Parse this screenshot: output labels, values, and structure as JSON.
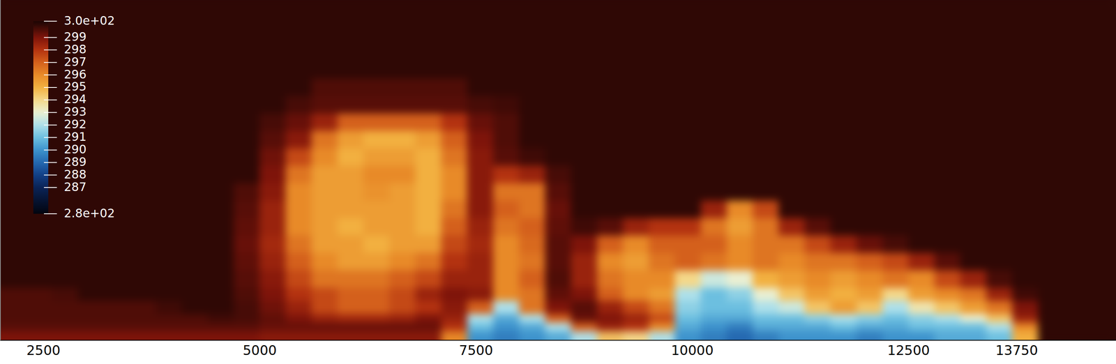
{
  "chart_data": {
    "type": "heatmap",
    "x_edges": [
      2000,
      2300,
      2600,
      2900,
      3200,
      3500,
      3800,
      4100,
      4400,
      4700,
      5000,
      5300,
      5600,
      5900,
      6200,
      6500,
      6800,
      7100,
      7400,
      7700,
      8000,
      8300,
      8600,
      8900,
      9200,
      9500,
      9800,
      10100,
      10400,
      10700,
      11000,
      11300,
      11600,
      11900,
      12200,
      12500,
      12800,
      13100,
      13400,
      13700,
      14000,
      14300,
      14600,
      14900
    ],
    "y_edges": [
      3900,
      3000,
      2800,
      2600,
      2400,
      2200,
      2000,
      1800,
      1600,
      1400,
      1200,
      1000,
      800,
      600,
      450,
      300,
      200,
      100,
      0
    ],
    "values": [
      [
        300,
        300,
        300,
        300,
        300,
        300,
        300,
        300,
        300,
        300,
        300,
        300,
        300,
        300,
        300,
        300,
        300,
        300,
        300,
        300,
        300,
        300,
        300,
        300,
        300,
        300,
        300,
        300,
        300,
        300,
        300,
        300,
        300,
        300,
        300,
        300,
        300,
        300,
        300,
        300,
        300,
        300,
        300
      ],
      [
        300,
        300,
        300,
        300,
        300,
        300,
        300,
        300,
        300,
        300,
        300,
        300,
        299.6,
        299.6,
        299.6,
        299.6,
        299.6,
        299.6,
        300,
        300,
        300,
        300,
        300,
        300,
        300,
        300,
        300,
        300,
        300,
        300,
        300,
        300,
        300,
        300,
        300,
        300,
        300,
        300,
        300,
        300,
        300,
        300,
        300
      ],
      [
        300,
        300,
        300,
        300,
        300,
        300,
        300,
        300,
        300,
        300,
        300,
        299.7,
        299.5,
        299.5,
        299.5,
        299.5,
        299.5,
        299.5,
        299.7,
        299.8,
        300,
        300,
        300,
        300,
        300,
        300,
        300,
        300,
        300,
        300,
        300,
        300,
        300,
        300,
        300,
        300,
        300,
        300,
        300,
        300,
        300,
        300,
        300
      ],
      [
        300,
        300,
        300,
        300,
        300,
        300,
        300,
        300,
        300,
        300,
        299.7,
        299.3,
        298.5,
        297,
        297,
        297,
        297,
        298,
        299.3,
        299.6,
        300,
        300,
        300,
        300,
        300,
        300,
        300,
        300,
        300,
        300,
        300,
        300,
        300,
        300,
        300,
        300,
        300,
        300,
        300,
        300,
        300,
        300,
        300
      ],
      [
        300,
        300,
        300,
        300,
        300,
        300,
        300,
        300,
        300,
        300,
        299.5,
        298.8,
        296.5,
        295.5,
        295,
        295,
        295.5,
        297,
        299,
        299.6,
        300,
        300,
        300,
        300,
        300,
        300,
        300,
        300,
        300,
        300,
        300,
        300,
        300,
        300,
        300,
        300,
        300,
        300,
        300,
        300,
        300,
        300,
        300
      ],
      [
        300,
        300,
        300,
        300,
        300,
        300,
        300,
        300,
        300,
        300,
        299.2,
        297.5,
        296,
        295,
        295.5,
        295.5,
        295,
        296.5,
        298.8,
        299.5,
        299.8,
        300,
        300,
        300,
        300,
        300,
        300,
        300,
        300,
        300,
        300,
        300,
        300,
        300,
        300,
        300,
        300,
        300,
        300,
        300,
        300,
        300,
        300
      ],
      [
        300,
        300,
        300,
        300,
        300,
        300,
        300,
        300,
        300,
        300,
        299,
        296.5,
        295.5,
        295.5,
        296,
        296,
        295,
        296,
        298.8,
        298,
        298.5,
        299.7,
        300,
        300,
        300,
        300,
        300,
        300,
        300,
        300,
        300,
        300,
        300,
        300,
        300,
        300,
        300,
        300,
        300,
        300,
        300,
        300,
        300
      ],
      [
        300,
        300,
        300,
        300,
        300,
        300,
        300,
        300,
        300,
        299.6,
        298.8,
        296,
        295.5,
        295.5,
        295.8,
        295.5,
        295,
        296,
        298.8,
        296.5,
        296.5,
        299.5,
        300,
        300,
        300,
        300,
        300,
        300,
        300,
        300,
        300,
        300,
        300,
        300,
        300,
        300,
        300,
        300,
        300,
        300,
        300,
        300,
        300
      ],
      [
        300,
        300,
        300,
        300,
        300,
        300,
        300,
        300,
        300,
        299.5,
        298.5,
        296,
        295.5,
        295.5,
        295.5,
        295.5,
        295,
        296.5,
        298.8,
        297,
        296.5,
        299.3,
        300,
        300,
        300,
        300,
        300,
        298.5,
        296,
        297.5,
        300,
        300,
        300,
        300,
        300,
        300,
        300,
        300,
        300,
        300,
        300,
        300,
        300
      ],
      [
        300,
        300,
        300,
        300,
        300,
        300,
        300,
        300,
        300,
        299.4,
        298.5,
        296,
        295.5,
        295,
        295.5,
        295.5,
        295,
        297,
        298.5,
        296.5,
        297,
        299.4,
        299.8,
        299.5,
        298.5,
        298,
        298,
        296.5,
        295.5,
        296.5,
        298.5,
        299.5,
        300,
        300,
        300,
        300,
        300,
        300,
        300,
        300,
        300,
        300,
        300
      ],
      [
        300,
        300,
        300,
        300,
        300,
        300,
        300,
        300,
        300,
        299.3,
        298.3,
        296.5,
        295.5,
        295.5,
        295,
        295.5,
        295.5,
        297.5,
        298.3,
        296,
        296.8,
        299.5,
        299,
        297,
        296,
        297,
        297,
        297,
        296,
        296.5,
        296.5,
        297.5,
        298.5,
        299.3,
        299.7,
        300,
        300,
        300,
        300,
        300,
        300,
        300,
        300
      ],
      [
        300,
        300,
        300,
        300,
        300,
        300,
        300,
        300,
        300,
        299.4,
        298.5,
        297,
        296,
        295.5,
        295.5,
        296,
        296.5,
        298,
        298.5,
        296,
        296.5,
        299.5,
        298.5,
        296,
        295.5,
        296.5,
        297,
        296.5,
        296,
        296.5,
        296,
        296.5,
        296.5,
        297,
        297.5,
        298.5,
        299.5,
        300,
        300,
        300,
        300,
        300,
        300
      ],
      [
        300,
        300,
        300,
        300,
        300,
        300,
        300,
        300,
        300,
        299.5,
        298.8,
        297.5,
        296.5,
        296.5,
        296.5,
        297,
        297.5,
        298.5,
        298.5,
        296,
        297,
        299.6,
        298.5,
        296.5,
        296,
        296,
        294,
        292.5,
        293,
        295,
        295.5,
        296,
        295.5,
        296,
        296.5,
        296,
        297.5,
        298.5,
        299.7,
        300,
        300,
        300,
        300
      ],
      [
        299.6,
        299.6,
        299.7,
        300,
        300,
        300,
        300,
        300,
        300,
        299.6,
        299,
        298,
        297.5,
        297,
        297,
        297.5,
        298.5,
        299,
        298.8,
        296,
        296.5,
        299.4,
        299,
        297,
        296,
        295.5,
        292,
        291,
        291.5,
        293,
        294.5,
        295.5,
        295,
        295.5,
        294,
        295.5,
        296,
        296.5,
        298.5,
        299.8,
        300,
        300,
        300
      ],
      [
        299.6,
        299.6,
        299.6,
        299.6,
        299.6,
        299.6,
        299.8,
        300,
        300,
        299.7,
        299.2,
        298.5,
        297.5,
        297,
        297,
        297.5,
        298,
        298.8,
        297,
        292,
        296.5,
        299,
        299.5,
        298.5,
        297.5,
        296.5,
        291.5,
        291,
        291,
        292,
        292.5,
        294.5,
        295.5,
        294.5,
        292,
        293.5,
        294.5,
        295.5,
        296.5,
        299,
        300,
        300,
        300
      ],
      [
        299.6,
        299.6,
        299.6,
        299.6,
        299.6,
        299.6,
        299.6,
        299.6,
        299.8,
        299.7,
        299.4,
        299,
        298.5,
        298.3,
        298.3,
        298.5,
        299,
        298.5,
        292,
        290.5,
        292,
        297,
        299.3,
        299,
        298.5,
        297.5,
        291,
        290.5,
        290.5,
        291,
        291,
        291.5,
        292,
        291.5,
        291,
        291.5,
        292,
        293,
        294.5,
        298.5,
        300,
        300,
        300
      ],
      [
        299.5,
        299.5,
        299.5,
        299.5,
        299.5,
        299.5,
        299.5,
        299.5,
        299.5,
        299.5,
        299.3,
        299.3,
        299.3,
        299.3,
        299.3,
        299.3,
        299.3,
        298,
        291,
        290,
        290.5,
        292,
        297,
        298.5,
        298,
        296,
        290.5,
        290,
        289.5,
        290.5,
        290.5,
        290.5,
        291,
        290.5,
        290.5,
        291,
        291,
        291,
        292,
        296,
        300,
        300,
        300
      ],
      [
        299,
        299,
        299,
        299,
        299,
        299,
        299,
        299,
        299,
        299,
        298.8,
        298.8,
        298.8,
        298.8,
        298.8,
        298.8,
        298.8,
        296,
        290,
        289.5,
        290,
        290.5,
        292,
        294.5,
        294,
        292,
        290,
        289.5,
        289,
        289.5,
        290,
        290,
        290,
        289.5,
        290,
        290,
        290.5,
        290.5,
        291,
        295,
        300,
        300,
        300
      ]
    ],
    "xlim": [
      2000,
      14900
    ],
    "ylim": [
      0,
      3900
    ],
    "xticks": [
      2500,
      5000,
      7500,
      10000,
      12500,
      13750
    ],
    "tick_labels": "x",
    "color_range": [
      284.9,
      300.3
    ],
    "color_ticks": [
      {
        "value": 300.3,
        "label": "3.0e+02"
      },
      299,
      298,
      297,
      296,
      295,
      294,
      293,
      292,
      291,
      290,
      289,
      288,
      287,
      {
        "value": 284.9,
        "label": "2.8e+02"
      }
    ]
  }
}
